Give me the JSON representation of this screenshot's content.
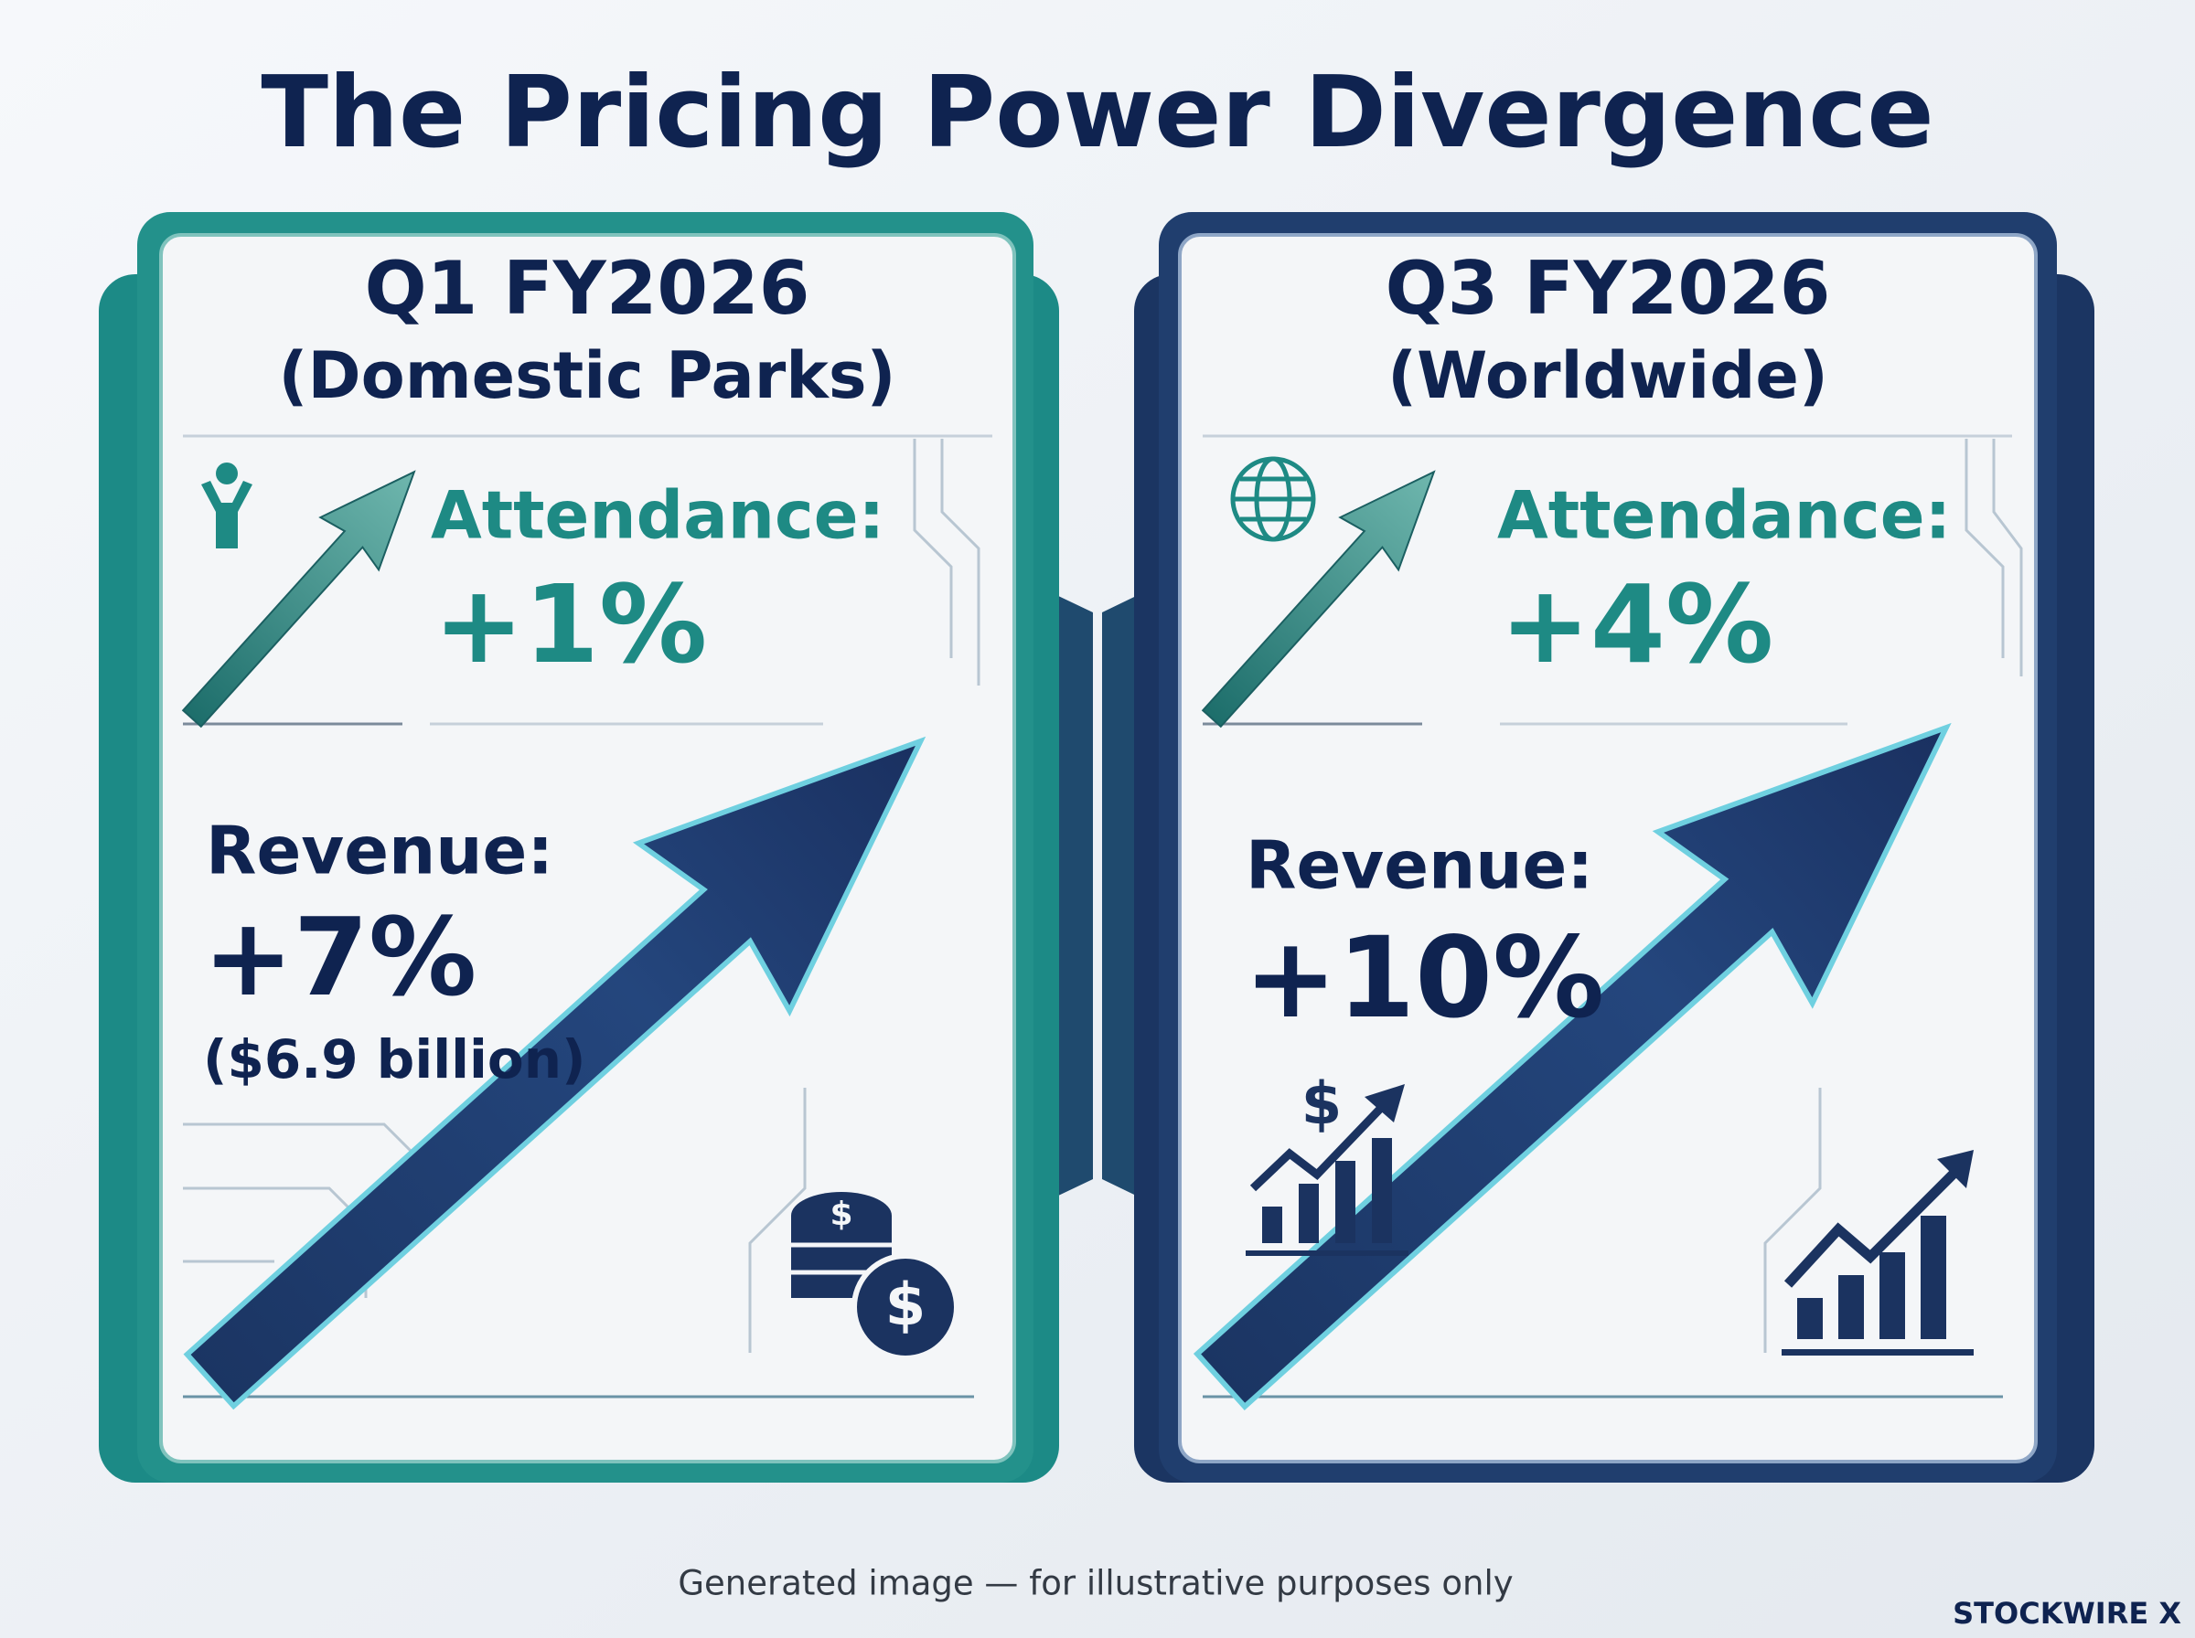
{
  "header": {
    "title": "The Pricing Power Divergence"
  },
  "panels": [
    {
      "period": "Q1 FY2026",
      "scope": "(Domestic Parks)",
      "attendance_label": "Attendance:",
      "attendance_value": "+1%",
      "revenue_label": "Revenue:",
      "revenue_value": "+7%",
      "revenue_amount": "($6.9 billion)"
    },
    {
      "period": "Q3 FY2026",
      "scope": "(Worldwide)",
      "attendance_label": "Attendance:",
      "attendance_value": "+4%",
      "revenue_label": "Revenue:",
      "revenue_value": "+10%"
    }
  ],
  "footer": {
    "note": "Generated image — for illustrative purposes only",
    "brand": "STOCKWIRE X"
  }
}
